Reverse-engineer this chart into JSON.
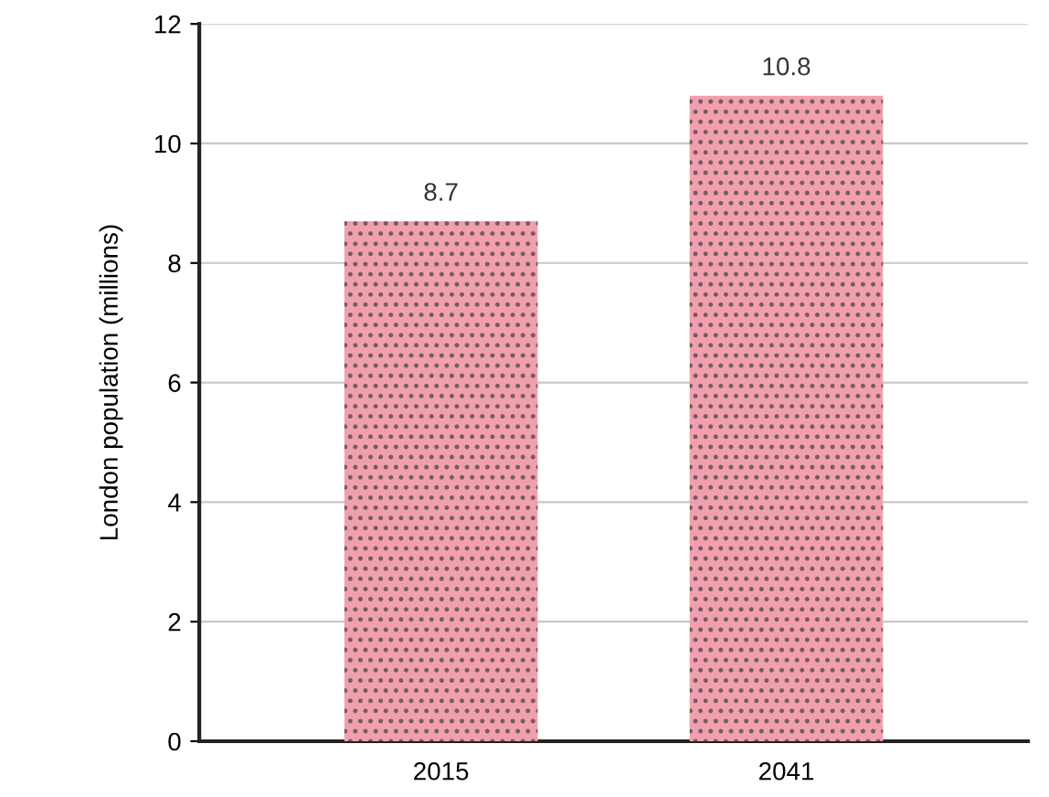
{
  "chart_data": {
    "type": "bar",
    "ylabel": "London population (millions)",
    "categories": [
      "2015",
      "2041"
    ],
    "values": [
      8.7,
      10.8
    ],
    "color": "#f0a0ac",
    "ylim": [
      0,
      12
    ],
    "yticks": [
      0,
      2,
      4,
      6,
      8,
      10,
      12
    ],
    "grid": "y",
    "data_labels": true
  }
}
